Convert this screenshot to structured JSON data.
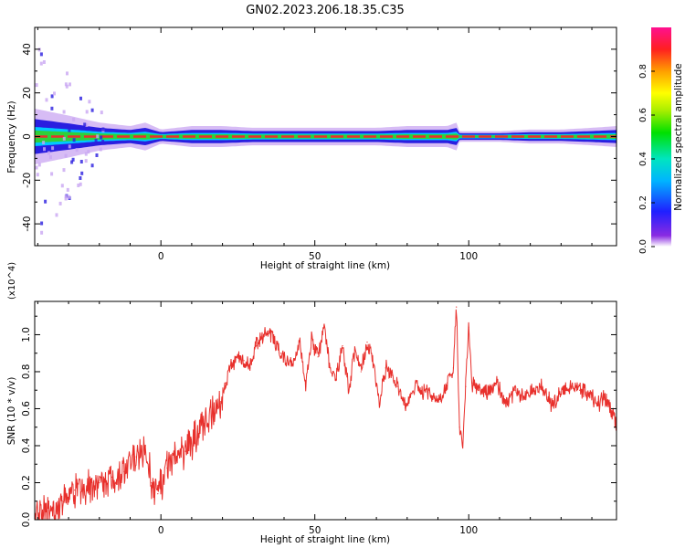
{
  "title": "GN02.2023.206.18.35.C35",
  "colors": {
    "snr_line": "#e8302c",
    "spectrum_core": "#e8302c",
    "spectrum_mid": "#2fd13a",
    "spectrum_edge": "#2a1ee0",
    "spectrum_halo": "#c9a6f2"
  },
  "chart_data": [
    {
      "type": "heatmap",
      "title": "GN02.2023.206.18.35.C35",
      "xlabel": "Height of straight line (km)",
      "ylabel": "Frequency (Hz)",
      "xlim": [
        -41,
        148
      ],
      "ylim": [
        -50,
        50
      ],
      "x_ticks": [
        0,
        50,
        100
      ],
      "y_ticks": [
        -40,
        -20,
        0,
        20,
        40
      ],
      "colorbar": {
        "label": "Normalized spectral amplitude",
        "range": [
          0,
          1
        ],
        "ticks": [
          0.0,
          0.2,
          0.4,
          0.6,
          0.8
        ],
        "tick_labels": [
          "0.0",
          "0.2",
          "0.4",
          "0.6",
          "0.8"
        ],
        "colormap": "rainbow"
      },
      "band": {
        "center_hz": 0,
        "x": [
          -41,
          -30,
          -20,
          -10,
          -5,
          0,
          10,
          20,
          30,
          40,
          50,
          60,
          70,
          80,
          85,
          90,
          93,
          96,
          97,
          100,
          110,
          120,
          130,
          140,
          148
        ],
        "halfwidth_hz": [
          8,
          6,
          4,
          3,
          4,
          2,
          3,
          3,
          2.5,
          2.5,
          2.5,
          2.5,
          2.5,
          3,
          3,
          3,
          3,
          4,
          1.5,
          1.5,
          1.5,
          2,
          2,
          2.5,
          3
        ]
      }
    },
    {
      "type": "line",
      "xlabel": "Height of straight line (km)",
      "ylabel": "SNR (10 * v/v)",
      "y_multiplier": "(x10^4)",
      "xlim": [
        -41,
        148
      ],
      "ylim": [
        0,
        1.18
      ],
      "x_ticks": [
        0,
        50,
        100
      ],
      "y_ticks": [
        0.0,
        0.2,
        0.4,
        0.6,
        0.8,
        1.0
      ],
      "y_tick_labels": [
        "0.0",
        "0.2",
        "0.4",
        "0.6",
        "0.8",
        "1.0"
      ],
      "x": [
        -41,
        -36,
        -32,
        -28,
        -24,
        -20,
        -16,
        -12,
        -8,
        -5,
        -3,
        -1,
        2,
        5,
        8,
        11,
        14,
        17,
        19,
        21,
        23,
        25,
        27,
        29,
        31,
        33,
        35,
        37,
        39,
        41,
        43,
        45,
        47,
        49,
        51,
        53,
        55,
        57,
        59,
        61,
        63,
        65,
        67,
        69,
        71,
        73,
        75,
        77,
        79,
        81,
        83,
        85,
        87,
        89,
        91,
        93,
        95,
        96,
        97,
        98,
        99,
        100,
        101,
        103,
        106,
        109,
        112,
        115,
        118,
        121,
        124,
        127,
        130,
        133,
        136,
        139,
        142,
        144,
        146,
        148
      ],
      "values": [
        0.02,
        0.05,
        0.1,
        0.16,
        0.18,
        0.2,
        0.23,
        0.26,
        0.34,
        0.4,
        0.2,
        0.14,
        0.28,
        0.34,
        0.37,
        0.44,
        0.52,
        0.58,
        0.62,
        0.74,
        0.84,
        0.88,
        0.86,
        0.82,
        0.94,
        0.98,
        1.02,
        0.96,
        0.9,
        0.86,
        0.84,
        0.96,
        0.72,
        0.98,
        0.88,
        1.04,
        0.82,
        0.76,
        0.94,
        0.7,
        0.92,
        0.8,
        0.96,
        0.84,
        0.62,
        0.82,
        0.78,
        0.72,
        0.62,
        0.66,
        0.74,
        0.68,
        0.7,
        0.66,
        0.64,
        0.74,
        0.82,
        1.15,
        0.5,
        0.4,
        0.72,
        1.04,
        0.74,
        0.7,
        0.68,
        0.74,
        0.62,
        0.7,
        0.66,
        0.7,
        0.72,
        0.62,
        0.68,
        0.72,
        0.7,
        0.68,
        0.62,
        0.66,
        0.6,
        0.52
      ]
    }
  ]
}
